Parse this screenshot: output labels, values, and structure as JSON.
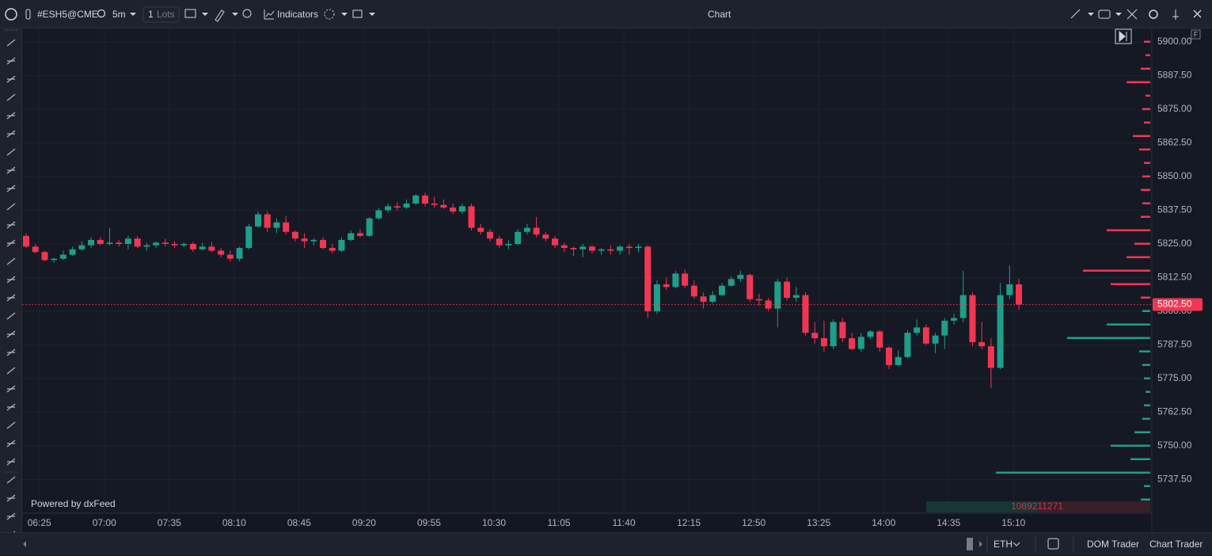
{
  "toolbar": {
    "symbol": "#ESH5@CME",
    "interval": "5m",
    "quantity": 1,
    "quantity_unit": "Lots",
    "indicators": "Indicators",
    "title": "Chart"
  },
  "panel_button": "F",
  "chart_data": {
    "type": "candlestick",
    "watermark": "Powered by dxFeed",
    "volume_total": 1089211271,
    "up_color": "#1f9e89",
    "down_color": "#f23652",
    "categories": [
      null,
      "06:25",
      null,
      null,
      null,
      null,
      null,
      null,
      "07:00",
      null,
      null,
      null,
      null,
      null,
      null,
      "07:35",
      null,
      null,
      null,
      null,
      null,
      null,
      "08:10",
      null,
      null,
      null,
      null,
      null,
      null,
      "08:45",
      null,
      null,
      null,
      null,
      null,
      null,
      "09:20",
      null,
      null,
      null,
      null,
      null,
      null,
      "09:55",
      null,
      null,
      null,
      null,
      null,
      null,
      "10:30",
      null,
      null,
      null,
      null,
      null,
      null,
      "11:05",
      null,
      null,
      null,
      null,
      null,
      null,
      "11:40",
      null,
      null,
      null,
      null,
      null,
      null,
      "12:15",
      null,
      null,
      null,
      null,
      null,
      null,
      "12:50",
      null,
      null,
      null,
      null,
      null,
      null,
      "13:25",
      null,
      null,
      null,
      null,
      null,
      null,
      "14:00",
      null,
      null,
      null,
      null,
      null,
      null,
      "14:35",
      null,
      null,
      null,
      null,
      null,
      null,
      "15:10",
      null
    ],
    "open": [
      5828,
      5824,
      5822,
      5819,
      5819.5,
      5821,
      5823,
      5824.5,
      5826.5,
      5825,
      5825.5,
      5825,
      5827,
      5824,
      5824.5,
      5825.5,
      5825,
      5824.5,
      5825,
      5823,
      5824,
      5822.5,
      5821,
      5819.5,
      5823.5,
      5831.5,
      5836,
      5831,
      5833,
      5829.5,
      5827,
      5826,
      5826.5,
      5823.5,
      5822.5,
      5826.5,
      5829,
      5828,
      5834.5,
      5837.5,
      5839,
      5838.5,
      5840,
      5843,
      5840,
      5839.5,
      5838.5,
      5837,
      5839,
      5831,
      5829.5,
      5827,
      5824.5,
      5825,
      5829.5,
      5831,
      5828.5,
      5827,
      5824.5,
      5823.5,
      5823,
      5824,
      5822.5,
      5823,
      5822.5,
      5824,
      5823.5,
      5824,
      5800,
      5810,
      5809,
      5814,
      5809.5,
      5805.5,
      5803.5,
      5806,
      5809.5,
      5812,
      5813.5,
      5804.5,
      5804,
      5801,
      5811,
      5805,
      5806,
      5792,
      5790,
      5787,
      5796,
      5790,
      5786,
      5790.5,
      5792.5,
      5786.5,
      5780,
      5783,
      5792,
      5794,
      5788,
      5791,
      5796.5,
      5797.5,
      5806,
      5788.5,
      5787,
      5779,
      5806,
      5810
    ],
    "high": [
      5829,
      5825,
      5822.5,
      5820,
      5822.5,
      5824,
      5826,
      5827.5,
      5827.5,
      5831,
      5826.5,
      5828,
      5828,
      5825.5,
      5826,
      5827,
      5826,
      5825.5,
      5825.75,
      5825.5,
      5825.75,
      5823.5,
      5822.5,
      5824,
      5832.5,
      5837,
      5837,
      5834.5,
      5835.5,
      5830,
      5829,
      5827,
      5827.5,
      5825,
      5827.5,
      5830,
      5830.5,
      5835,
      5838.5,
      5840,
      5840.5,
      5841.5,
      5843.5,
      5844,
      5842.5,
      5841.5,
      5840,
      5840,
      5840,
      5832.5,
      5830.5,
      5828,
      5826.5,
      5830.5,
      5832.5,
      5835,
      5829.5,
      5828,
      5825.5,
      5824,
      5825,
      5824.5,
      5823.5,
      5824.5,
      5824.5,
      5825,
      5825,
      5824.5,
      5811.5,
      5812.5,
      5815,
      5815.5,
      5811.5,
      5807,
      5807.5,
      5810.5,
      5813,
      5815,
      5814,
      5806.5,
      5805,
      5812,
      5812.5,
      5809,
      5807,
      5796,
      5796.5,
      5797,
      5797.5,
      5792,
      5792,
      5793,
      5793,
      5787,
      5785.5,
      5793,
      5797,
      5795,
      5792,
      5797.5,
      5799,
      5815,
      5807,
      5796,
      5790,
      5810.5,
      5817,
      5812
    ],
    "low": [
      5823.5,
      5821.5,
      5818.5,
      5818,
      5819,
      5820.5,
      5822.5,
      5823.5,
      5824.5,
      5824.5,
      5824,
      5823,
      5823.5,
      5822.5,
      5823.5,
      5824,
      5823.5,
      5823.75,
      5822,
      5822.5,
      5822,
      5820,
      5818.5,
      5818.5,
      5823,
      5831,
      5829.5,
      5829,
      5828.5,
      5826,
      5823.5,
      5824.5,
      5823,
      5821.5,
      5822,
      5826,
      5827.5,
      5827.5,
      5834,
      5836.5,
      5837.5,
      5838,
      5839.5,
      5839,
      5838.5,
      5838,
      5836,
      5836,
      5830,
      5828.5,
      5826,
      5823.5,
      5823,
      5824.5,
      5828.5,
      5827.5,
      5826,
      5823.5,
      5822,
      5820.5,
      5820,
      5821.5,
      5821,
      5821,
      5821,
      5821,
      5822,
      5797.5,
      5799,
      5808,
      5808.5,
      5808.5,
      5804.5,
      5801,
      5803,
      5805.5,
      5809,
      5811,
      5803.5,
      5802,
      5800,
      5794,
      5804,
      5803.5,
      5791,
      5788,
      5785,
      5786,
      5788.5,
      5785.5,
      5785,
      5789.5,
      5785,
      5778.5,
      5779.5,
      5782.5,
      5791,
      5787.5,
      5784.5,
      5786,
      5795,
      5796,
      5787,
      5786,
      5771.5,
      5778.5,
      5804.5,
      5800.5
    ],
    "close": [
      5824,
      5822,
      5819,
      5819.5,
      5821,
      5823,
      5824.5,
      5826.5,
      5825,
      5825.5,
      5825,
      5827,
      5824,
      5824.5,
      5825.5,
      5825,
      5824.5,
      5825,
      5823,
      5824,
      5822.5,
      5821,
      5819.5,
      5823.5,
      5831.5,
      5836,
      5831,
      5833,
      5829.5,
      5827,
      5826,
      5826.5,
      5823.5,
      5822.5,
      5826.5,
      5829,
      5828,
      5834.5,
      5837.5,
      5839,
      5838.5,
      5840,
      5843,
      5840,
      5839.5,
      5838.5,
      5837,
      5839,
      5831,
      5829.5,
      5827,
      5824.5,
      5825,
      5829.5,
      5831,
      5828.5,
      5827,
      5824.5,
      5823.5,
      5823,
      5824,
      5822.5,
      5823,
      5822.5,
      5824,
      5823.5,
      5824,
      5800,
      5810,
      5809,
      5814,
      5809.5,
      5805.5,
      5803.5,
      5806,
      5809.5,
      5812,
      5813.5,
      5804.5,
      5804,
      5801,
      5811,
      5805,
      5806,
      5792,
      5790,
      5787,
      5796,
      5790,
      5786,
      5790.5,
      5792.5,
      5786.5,
      5780,
      5783,
      5792,
      5794,
      5788,
      5791,
      5796.5,
      5797.5,
      5806,
      5788.5,
      5787,
      5779,
      5806,
      5810,
      5802.5
    ],
    "ylim": [
      5727.5,
      5905
    ],
    "yticks": [
      {
        "value": 5737.5,
        "label": "5737.50"
      },
      {
        "value": 5750,
        "label": "5750.00"
      },
      {
        "value": 5762.5,
        "label": "5762.50"
      },
      {
        "value": 5775,
        "label": "5775.00"
      },
      {
        "value": 5787.5,
        "label": "5787.50"
      },
      {
        "value": 5800,
        "label": "5800.00"
      },
      {
        "value": 5812.5,
        "label": "5812.50"
      },
      {
        "value": 5825,
        "label": "5825.00"
      },
      {
        "value": 5837.5,
        "label": "5837.50"
      },
      {
        "value": 5850,
        "label": "5850.00"
      },
      {
        "value": 5862.5,
        "label": "5862.50"
      },
      {
        "value": 5875,
        "label": "5875.00"
      },
      {
        "value": 5887.5,
        "label": "5887.50"
      },
      {
        "value": 5900,
        "label": "5900.00"
      }
    ],
    "grid": true,
    "last_price": {
      "value": 5802.5,
      "label": "5802.50"
    },
    "profile": {
      "prices": [
        5730,
        5735,
        5740,
        5745,
        5750,
        5755,
        5760,
        5765,
        5770,
        5775,
        5780,
        5785,
        5790,
        5795,
        5800,
        5805,
        5810,
        5815,
        5820,
        5825,
        5830,
        5835,
        5840,
        5845,
        5850,
        5855,
        5860,
        5865,
        5870,
        5875,
        5880,
        5885,
        5890,
        5895,
        5900
      ],
      "values": [
        12,
        8,
        195,
        25,
        50,
        20,
        10,
        8,
        6,
        8,
        10,
        14,
        105,
        55,
        10,
        12,
        50,
        85,
        30,
        20,
        55,
        12,
        10,
        12,
        10,
        8,
        14,
        22,
        8,
        10,
        6,
        30,
        12,
        6,
        8
      ]
    }
  },
  "bottom_bar": {
    "session": "ETH",
    "buttons": [
      "DOM Trader",
      "Chart Trader"
    ]
  }
}
